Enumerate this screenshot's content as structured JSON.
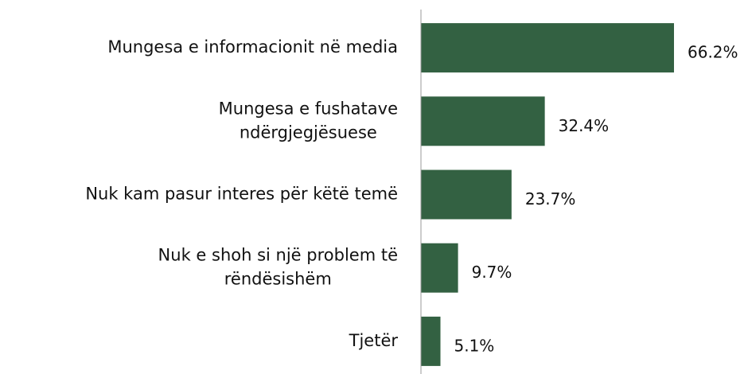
{
  "chart_data": {
    "type": "bar",
    "orientation": "horizontal",
    "categories": [
      [
        "Mungesa e informacionit në media"
      ],
      [
        "Mungesa e fushatave",
        "ndërgjegjësuese"
      ],
      [
        "Nuk kam pasur interes për këtë temë"
      ],
      [
        "Nuk e shoh si një problem të",
        "rëndësishëm"
      ],
      [
        "Tjetër"
      ]
    ],
    "values": [
      66.2,
      32.4,
      23.7,
      9.7,
      5.1
    ],
    "value_labels": [
      "66.2%",
      "32.4%",
      "23.7%",
      "9.7%",
      "5.1%"
    ],
    "color": "#336142"
  }
}
